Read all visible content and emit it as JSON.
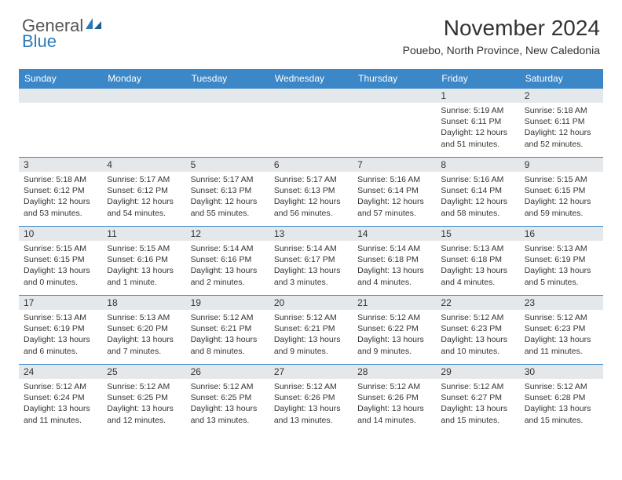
{
  "logo": {
    "general": "General",
    "blue": "Blue"
  },
  "title": "November 2024",
  "location": "Pouebo, North Province, New Caledonia",
  "colors": {
    "header_bg": "#3b87c8",
    "header_text": "#ffffff",
    "daynum_bg": "#e5e8eb",
    "border": "#3b87c8",
    "text": "#333333",
    "logo_blue": "#2a7ab9",
    "logo_grey": "#555555"
  },
  "day_headers": [
    "Sunday",
    "Monday",
    "Tuesday",
    "Wednesday",
    "Thursday",
    "Friday",
    "Saturday"
  ],
  "weeks": [
    [
      null,
      null,
      null,
      null,
      null,
      {
        "n": "1",
        "sunrise": "Sunrise: 5:19 AM",
        "sunset": "Sunset: 6:11 PM",
        "day1": "Daylight: 12 hours",
        "day2": "and 51 minutes."
      },
      {
        "n": "2",
        "sunrise": "Sunrise: 5:18 AM",
        "sunset": "Sunset: 6:11 PM",
        "day1": "Daylight: 12 hours",
        "day2": "and 52 minutes."
      }
    ],
    [
      {
        "n": "3",
        "sunrise": "Sunrise: 5:18 AM",
        "sunset": "Sunset: 6:12 PM",
        "day1": "Daylight: 12 hours",
        "day2": "and 53 minutes."
      },
      {
        "n": "4",
        "sunrise": "Sunrise: 5:17 AM",
        "sunset": "Sunset: 6:12 PM",
        "day1": "Daylight: 12 hours",
        "day2": "and 54 minutes."
      },
      {
        "n": "5",
        "sunrise": "Sunrise: 5:17 AM",
        "sunset": "Sunset: 6:13 PM",
        "day1": "Daylight: 12 hours",
        "day2": "and 55 minutes."
      },
      {
        "n": "6",
        "sunrise": "Sunrise: 5:17 AM",
        "sunset": "Sunset: 6:13 PM",
        "day1": "Daylight: 12 hours",
        "day2": "and 56 minutes."
      },
      {
        "n": "7",
        "sunrise": "Sunrise: 5:16 AM",
        "sunset": "Sunset: 6:14 PM",
        "day1": "Daylight: 12 hours",
        "day2": "and 57 minutes."
      },
      {
        "n": "8",
        "sunrise": "Sunrise: 5:16 AM",
        "sunset": "Sunset: 6:14 PM",
        "day1": "Daylight: 12 hours",
        "day2": "and 58 minutes."
      },
      {
        "n": "9",
        "sunrise": "Sunrise: 5:15 AM",
        "sunset": "Sunset: 6:15 PM",
        "day1": "Daylight: 12 hours",
        "day2": "and 59 minutes."
      }
    ],
    [
      {
        "n": "10",
        "sunrise": "Sunrise: 5:15 AM",
        "sunset": "Sunset: 6:15 PM",
        "day1": "Daylight: 13 hours",
        "day2": "and 0 minutes."
      },
      {
        "n": "11",
        "sunrise": "Sunrise: 5:15 AM",
        "sunset": "Sunset: 6:16 PM",
        "day1": "Daylight: 13 hours",
        "day2": "and 1 minute."
      },
      {
        "n": "12",
        "sunrise": "Sunrise: 5:14 AM",
        "sunset": "Sunset: 6:16 PM",
        "day1": "Daylight: 13 hours",
        "day2": "and 2 minutes."
      },
      {
        "n": "13",
        "sunrise": "Sunrise: 5:14 AM",
        "sunset": "Sunset: 6:17 PM",
        "day1": "Daylight: 13 hours",
        "day2": "and 3 minutes."
      },
      {
        "n": "14",
        "sunrise": "Sunrise: 5:14 AM",
        "sunset": "Sunset: 6:18 PM",
        "day1": "Daylight: 13 hours",
        "day2": "and 4 minutes."
      },
      {
        "n": "15",
        "sunrise": "Sunrise: 5:13 AM",
        "sunset": "Sunset: 6:18 PM",
        "day1": "Daylight: 13 hours",
        "day2": "and 4 minutes."
      },
      {
        "n": "16",
        "sunrise": "Sunrise: 5:13 AM",
        "sunset": "Sunset: 6:19 PM",
        "day1": "Daylight: 13 hours",
        "day2": "and 5 minutes."
      }
    ],
    [
      {
        "n": "17",
        "sunrise": "Sunrise: 5:13 AM",
        "sunset": "Sunset: 6:19 PM",
        "day1": "Daylight: 13 hours",
        "day2": "and 6 minutes."
      },
      {
        "n": "18",
        "sunrise": "Sunrise: 5:13 AM",
        "sunset": "Sunset: 6:20 PM",
        "day1": "Daylight: 13 hours",
        "day2": "and 7 minutes."
      },
      {
        "n": "19",
        "sunrise": "Sunrise: 5:12 AM",
        "sunset": "Sunset: 6:21 PM",
        "day1": "Daylight: 13 hours",
        "day2": "and 8 minutes."
      },
      {
        "n": "20",
        "sunrise": "Sunrise: 5:12 AM",
        "sunset": "Sunset: 6:21 PM",
        "day1": "Daylight: 13 hours",
        "day2": "and 9 minutes."
      },
      {
        "n": "21",
        "sunrise": "Sunrise: 5:12 AM",
        "sunset": "Sunset: 6:22 PM",
        "day1": "Daylight: 13 hours",
        "day2": "and 9 minutes."
      },
      {
        "n": "22",
        "sunrise": "Sunrise: 5:12 AM",
        "sunset": "Sunset: 6:23 PM",
        "day1": "Daylight: 13 hours",
        "day2": "and 10 minutes."
      },
      {
        "n": "23",
        "sunrise": "Sunrise: 5:12 AM",
        "sunset": "Sunset: 6:23 PM",
        "day1": "Daylight: 13 hours",
        "day2": "and 11 minutes."
      }
    ],
    [
      {
        "n": "24",
        "sunrise": "Sunrise: 5:12 AM",
        "sunset": "Sunset: 6:24 PM",
        "day1": "Daylight: 13 hours",
        "day2": "and 11 minutes."
      },
      {
        "n": "25",
        "sunrise": "Sunrise: 5:12 AM",
        "sunset": "Sunset: 6:25 PM",
        "day1": "Daylight: 13 hours",
        "day2": "and 12 minutes."
      },
      {
        "n": "26",
        "sunrise": "Sunrise: 5:12 AM",
        "sunset": "Sunset: 6:25 PM",
        "day1": "Daylight: 13 hours",
        "day2": "and 13 minutes."
      },
      {
        "n": "27",
        "sunrise": "Sunrise: 5:12 AM",
        "sunset": "Sunset: 6:26 PM",
        "day1": "Daylight: 13 hours",
        "day2": "and 13 minutes."
      },
      {
        "n": "28",
        "sunrise": "Sunrise: 5:12 AM",
        "sunset": "Sunset: 6:26 PM",
        "day1": "Daylight: 13 hours",
        "day2": "and 14 minutes."
      },
      {
        "n": "29",
        "sunrise": "Sunrise: 5:12 AM",
        "sunset": "Sunset: 6:27 PM",
        "day1": "Daylight: 13 hours",
        "day2": "and 15 minutes."
      },
      {
        "n": "30",
        "sunrise": "Sunrise: 5:12 AM",
        "sunset": "Sunset: 6:28 PM",
        "day1": "Daylight: 13 hours",
        "day2": "and 15 minutes."
      }
    ]
  ]
}
